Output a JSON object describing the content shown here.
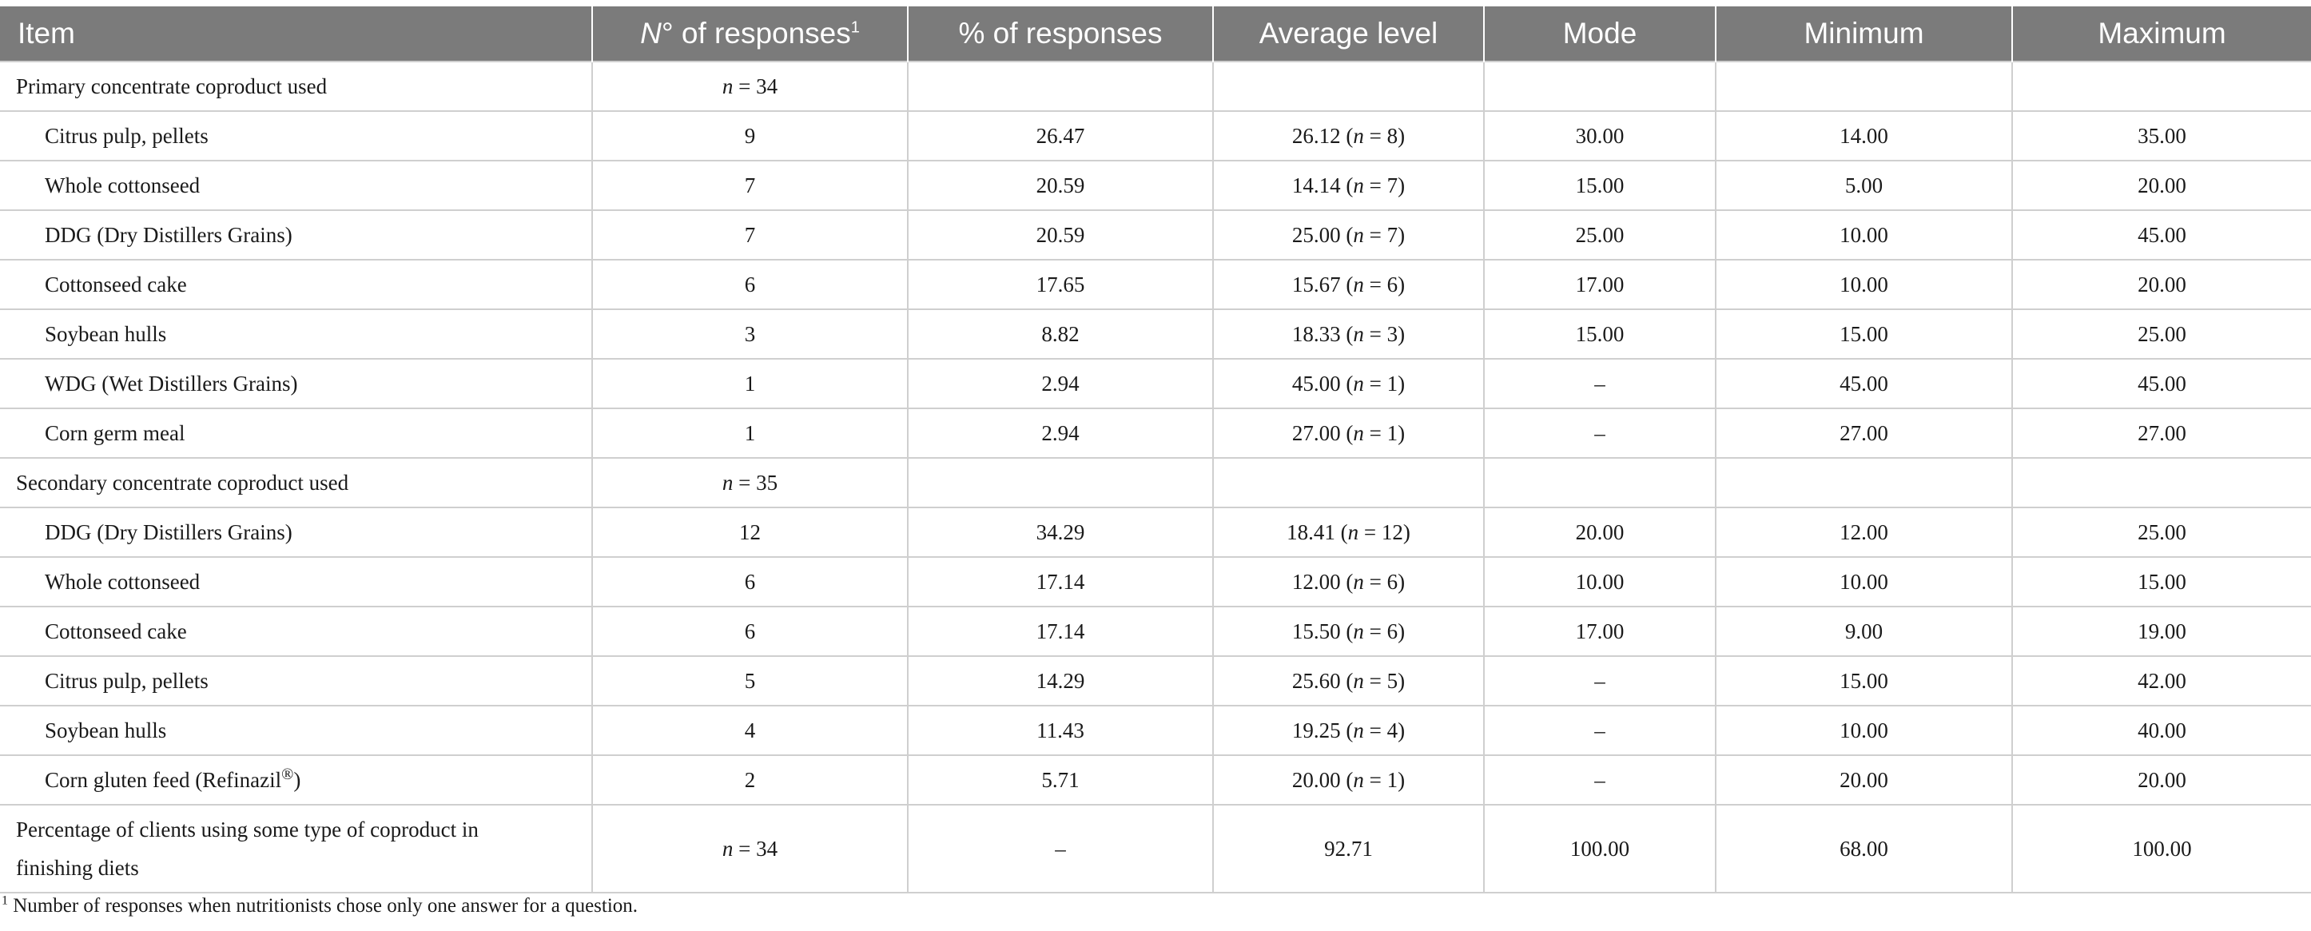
{
  "columns": {
    "item": "Item",
    "responses_prefix": "N",
    "responses_degree": "°",
    "responses_suffix": " of responses",
    "responses_note": "1",
    "pct": "% of responses",
    "avg": "Average level",
    "mode": "Mode",
    "min": "Minimum",
    "max": "Maximum"
  },
  "groups": [
    {
      "label": "Primary concentrate coproduct used",
      "n_prefix": "n",
      "n_value": " = 34",
      "rows": [
        {
          "item": "Citrus pulp, pellets",
          "responses": "9",
          "pct": "26.47",
          "avg_value": "26.12 (",
          "avg_n": "n",
          "avg_count": " = 8)",
          "mode": "30.00",
          "min": "14.00",
          "max": "35.00"
        },
        {
          "item": "Whole cottonseed",
          "responses": "7",
          "pct": "20.59",
          "avg_value": "14.14 (",
          "avg_n": "n",
          "avg_count": " = 7)",
          "mode": "15.00",
          "min": "5.00",
          "max": "20.00"
        },
        {
          "item": "DDG (Dry Distillers Grains)",
          "responses": "7",
          "pct": "20.59",
          "avg_value": "25.00 (",
          "avg_n": "n",
          "avg_count": " = 7)",
          "mode": "25.00",
          "min": "10.00",
          "max": "45.00"
        },
        {
          "item": "Cottonseed cake",
          "responses": "6",
          "pct": "17.65",
          "avg_value": "15.67 (",
          "avg_n": "n",
          "avg_count": " = 6)",
          "mode": "17.00",
          "min": "10.00",
          "max": "20.00"
        },
        {
          "item": "Soybean hulls",
          "responses": "3",
          "pct": "8.82",
          "avg_value": "18.33 (",
          "avg_n": "n",
          "avg_count": " = 3)",
          "mode": "15.00",
          "min": "15.00",
          "max": "25.00"
        },
        {
          "item": "WDG (Wet Distillers Grains)",
          "responses": "1",
          "pct": "2.94",
          "avg_value": "45.00 (",
          "avg_n": "n",
          "avg_count": " = 1)",
          "mode": "–",
          "min": "45.00",
          "max": "45.00"
        },
        {
          "item": "Corn germ meal",
          "responses": "1",
          "pct": "2.94",
          "avg_value": "27.00 (",
          "avg_n": "n",
          "avg_count": " = 1)",
          "mode": "–",
          "min": "27.00",
          "max": "27.00"
        }
      ]
    },
    {
      "label": "Secondary concentrate coproduct used",
      "n_prefix": "n",
      "n_value": " = 35",
      "rows": [
        {
          "item": "DDG (Dry Distillers Grains)",
          "responses": "12",
          "pct": "34.29",
          "avg_value": "18.41 (",
          "avg_n": "n",
          "avg_count": " = 12)",
          "mode": "20.00",
          "min": "12.00",
          "max": "25.00"
        },
        {
          "item": "Whole cottonseed",
          "responses": "6",
          "pct": "17.14",
          "avg_value": "12.00 (",
          "avg_n": "n",
          "avg_count": " = 6)",
          "mode": "10.00",
          "min": "10.00",
          "max": "15.00"
        },
        {
          "item": "Cottonseed cake",
          "responses": "6",
          "pct": "17.14",
          "avg_value": "15.50 (",
          "avg_n": "n",
          "avg_count": " = 6)",
          "mode": "17.00",
          "min": "9.00",
          "max": "19.00"
        },
        {
          "item": "Citrus pulp, pellets",
          "responses": "5",
          "pct": "14.29",
          "avg_value": "25.60 (",
          "avg_n": "n",
          "avg_count": " = 5)",
          "mode": "–",
          "min": "15.00",
          "max": "42.00"
        },
        {
          "item": "Soybean hulls",
          "responses": "4",
          "pct": "11.43",
          "avg_value": "19.25 (",
          "avg_n": "n",
          "avg_count": " = 4)",
          "mode": "–",
          "min": "10.00",
          "max": "40.00"
        },
        {
          "item": "Corn gluten feed (Refinazil",
          "item_sup": "®",
          "item_end": ")",
          "responses": "2",
          "pct": "5.71",
          "avg_value": "20.00 (",
          "avg_n": "n",
          "avg_count": " = 1)",
          "mode": "–",
          "min": "20.00",
          "max": "20.00"
        }
      ]
    }
  ],
  "summary": {
    "item_line1": "Percentage of clients using some type of coproduct in",
    "item_line2": "finishing diets",
    "n_prefix": "n",
    "n_value": " = 34",
    "pct": "–",
    "avg": "92.71",
    "mode": "100.00",
    "min": "68.00",
    "max": "100.00"
  },
  "footnote": {
    "marker": "1",
    "text": " Number of responses when nutritionists chose only one answer for a question."
  }
}
